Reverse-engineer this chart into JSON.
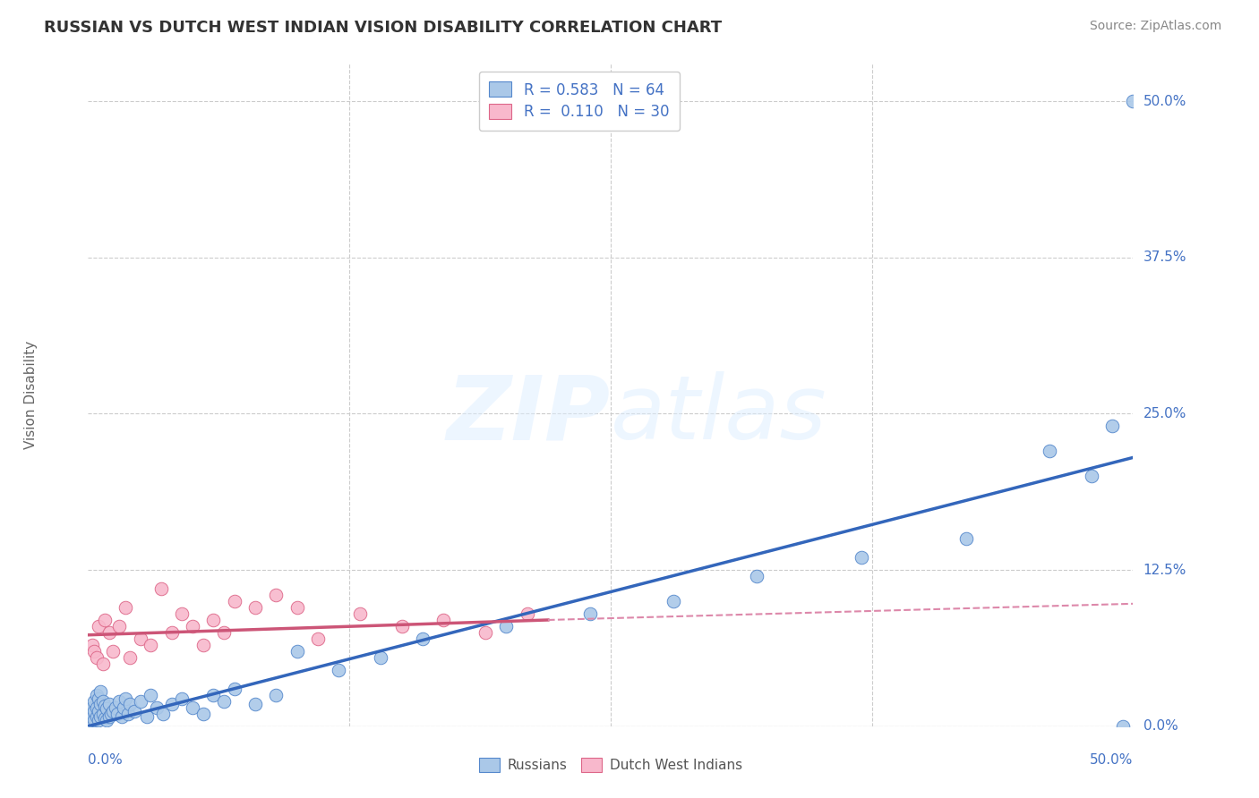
{
  "title": "RUSSIAN VS DUTCH WEST INDIAN VISION DISABILITY CORRELATION CHART",
  "source": "Source: ZipAtlas.com",
  "ylabel": "Vision Disability",
  "y_tick_labels": [
    "0.0%",
    "12.5%",
    "25.0%",
    "37.5%",
    "50.0%"
  ],
  "y_tick_values": [
    0.0,
    0.125,
    0.25,
    0.375,
    0.5
  ],
  "x_tick_labels": [
    "0.0%",
    "50.0%"
  ],
  "x_tick_values": [
    0.0,
    0.5
  ],
  "legend_label_blue": "Russians",
  "legend_label_pink": "Dutch West Indians",
  "blue_color": "#aac8e8",
  "blue_edge_color": "#5588cc",
  "blue_line_color": "#3366bb",
  "pink_color": "#f8b8cc",
  "pink_edge_color": "#dd6688",
  "pink_line_color": "#cc5577",
  "pink_dashed_color": "#dd88aa",
  "background_color": "#ffffff",
  "grid_color": "#cccccc",
  "title_color": "#333333",
  "source_color": "#888888",
  "axis_label_color": "#4472c4",
  "legend_text_color": "#4472c4",
  "ylabel_color": "#666666",
  "watermark_color": "#ddeeff",
  "blue_scatter_x": [
    0.001,
    0.001,
    0.002,
    0.002,
    0.003,
    0.003,
    0.003,
    0.004,
    0.004,
    0.004,
    0.005,
    0.005,
    0.005,
    0.006,
    0.006,
    0.006,
    0.007,
    0.007,
    0.008,
    0.008,
    0.009,
    0.009,
    0.01,
    0.01,
    0.011,
    0.012,
    0.013,
    0.014,
    0.015,
    0.016,
    0.017,
    0.018,
    0.019,
    0.02,
    0.022,
    0.025,
    0.028,
    0.03,
    0.033,
    0.036,
    0.04,
    0.045,
    0.05,
    0.055,
    0.06,
    0.065,
    0.07,
    0.08,
    0.09,
    0.1,
    0.12,
    0.14,
    0.16,
    0.2,
    0.24,
    0.28,
    0.32,
    0.37,
    0.42,
    0.46,
    0.48,
    0.49,
    0.495,
    0.5
  ],
  "blue_scatter_y": [
    0.005,
    0.01,
    0.008,
    0.015,
    0.005,
    0.012,
    0.02,
    0.008,
    0.015,
    0.025,
    0.005,
    0.012,
    0.022,
    0.008,
    0.018,
    0.028,
    0.01,
    0.02,
    0.006,
    0.016,
    0.005,
    0.014,
    0.008,
    0.018,
    0.01,
    0.012,
    0.015,
    0.01,
    0.02,
    0.008,
    0.015,
    0.022,
    0.01,
    0.018,
    0.012,
    0.02,
    0.008,
    0.025,
    0.015,
    0.01,
    0.018,
    0.022,
    0.015,
    0.01,
    0.025,
    0.02,
    0.03,
    0.018,
    0.025,
    0.06,
    0.045,
    0.055,
    0.07,
    0.08,
    0.09,
    0.1,
    0.12,
    0.135,
    0.15,
    0.22,
    0.2,
    0.24,
    0.0,
    0.5
  ],
  "pink_scatter_x": [
    0.002,
    0.003,
    0.004,
    0.005,
    0.007,
    0.008,
    0.01,
    0.012,
    0.015,
    0.018,
    0.02,
    0.025,
    0.03,
    0.035,
    0.04,
    0.045,
    0.05,
    0.055,
    0.06,
    0.065,
    0.07,
    0.08,
    0.09,
    0.1,
    0.11,
    0.13,
    0.15,
    0.17,
    0.19,
    0.21
  ],
  "pink_scatter_y": [
    0.065,
    0.06,
    0.055,
    0.08,
    0.05,
    0.085,
    0.075,
    0.06,
    0.08,
    0.095,
    0.055,
    0.07,
    0.065,
    0.11,
    0.075,
    0.09,
    0.08,
    0.065,
    0.085,
    0.075,
    0.1,
    0.095,
    0.105,
    0.095,
    0.07,
    0.09,
    0.08,
    0.085,
    0.075,
    0.09
  ],
  "blue_line": [
    [
      0.0,
      0.5
    ],
    [
      0.0,
      0.215
    ]
  ],
  "pink_solid_line": [
    [
      0.0,
      0.22
    ],
    [
      0.073,
      0.085
    ]
  ],
  "pink_dashed_line": [
    [
      0.22,
      0.5
    ],
    [
      0.085,
      0.098
    ]
  ],
  "xlim": [
    0.0,
    0.5
  ],
  "ylim": [
    0.0,
    0.53
  ]
}
